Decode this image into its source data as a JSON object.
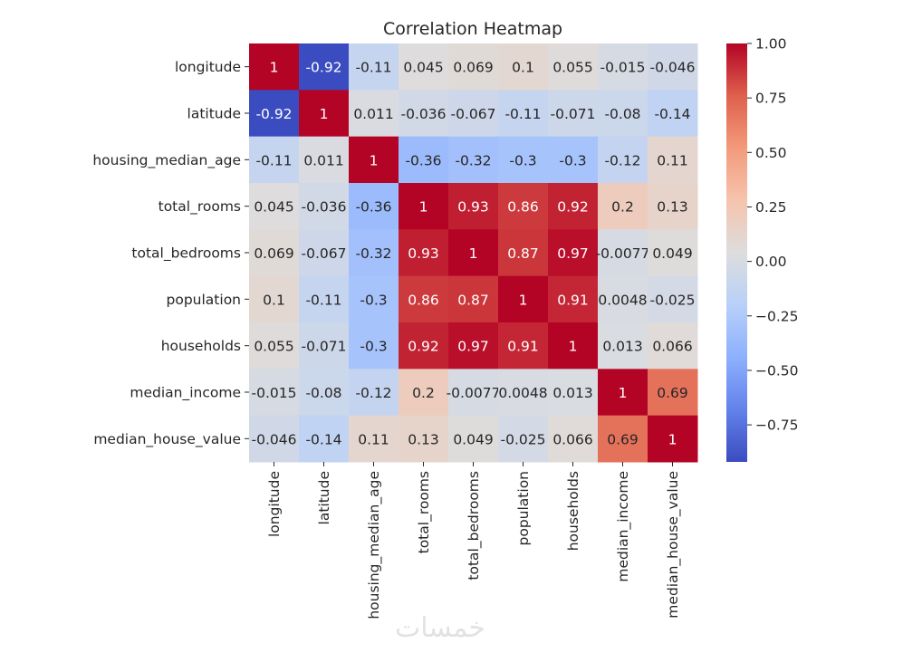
{
  "chart_data": {
    "type": "heatmap",
    "title": "Correlation Heatmap",
    "xlabel": "",
    "ylabel": "",
    "labels": [
      "longitude",
      "latitude",
      "housing_median_age",
      "total_rooms",
      "total_bedrooms",
      "population",
      "households",
      "median_income",
      "median_house_value"
    ],
    "matrix": [
      [
        1,
        -0.92,
        -0.11,
        0.045,
        0.069,
        0.1,
        0.055,
        -0.015,
        -0.046
      ],
      [
        -0.92,
        1,
        0.011,
        -0.036,
        -0.067,
        -0.11,
        -0.071,
        -0.08,
        -0.14
      ],
      [
        -0.11,
        0.011,
        1,
        -0.36,
        -0.32,
        -0.3,
        -0.3,
        -0.12,
        0.11
      ],
      [
        0.045,
        -0.036,
        -0.36,
        1,
        0.93,
        0.86,
        0.92,
        0.2,
        0.13
      ],
      [
        0.069,
        -0.067,
        -0.32,
        0.93,
        1,
        0.87,
        0.97,
        -0.0077,
        0.049
      ],
      [
        0.1,
        -0.11,
        -0.3,
        0.86,
        0.87,
        1,
        0.91,
        0.0048,
        -0.025
      ],
      [
        0.055,
        -0.071,
        -0.3,
        0.92,
        0.97,
        0.91,
        1,
        0.013,
        0.066
      ],
      [
        -0.015,
        -0.08,
        -0.12,
        0.2,
        -0.0077,
        0.0048,
        0.013,
        1,
        0.69
      ],
      [
        -0.046,
        -0.14,
        0.11,
        0.13,
        0.049,
        -0.025,
        0.066,
        0.69,
        1
      ]
    ],
    "annotations": [
      [
        "1",
        "-0.92",
        "-0.11",
        "0.045",
        "0.069",
        "0.1",
        "0.055",
        "-0.015",
        "-0.046"
      ],
      [
        "-0.92",
        "1",
        "0.011",
        "-0.036",
        "-0.067",
        "-0.11",
        "-0.071",
        "-0.08",
        "-0.14"
      ],
      [
        "-0.11",
        "0.011",
        "1",
        "-0.36",
        "-0.32",
        "-0.3",
        "-0.3",
        "-0.12",
        "0.11"
      ],
      [
        "0.045",
        "-0.036",
        "-0.36",
        "1",
        "0.93",
        "0.86",
        "0.92",
        "0.2",
        "0.13"
      ],
      [
        "0.069",
        "-0.067",
        "-0.32",
        "0.93",
        "1",
        "0.87",
        "0.97",
        "-0.0077",
        "0.049"
      ],
      [
        "0.1",
        "-0.11",
        "-0.3",
        "0.86",
        "0.87",
        "1",
        "0.91",
        "0.0048",
        "-0.025"
      ],
      [
        "0.055",
        "-0.071",
        "-0.3",
        "0.92",
        "0.97",
        "0.91",
        "1",
        "0.013",
        "0.066"
      ],
      [
        "-0.015",
        "-0.08",
        "-0.12",
        "0.2",
        "-0.0077",
        "0.0048",
        "0.013",
        "1",
        "0.69"
      ],
      [
        "-0.046",
        "-0.14",
        "0.11",
        "0.13",
        "0.049",
        "-0.025",
        "0.066",
        "0.69",
        "1"
      ]
    ],
    "colormap": "coolwarm",
    "colorbar": {
      "range": [
        -0.92,
        1.0
      ],
      "ticks": [
        1.0,
        0.75,
        0.5,
        0.25,
        0.0,
        -0.25,
        -0.5,
        -0.75
      ],
      "tick_labels": [
        "1.00",
        "0.75",
        "0.50",
        "0.25",
        "0.00",
        "−0.25",
        "−0.50",
        "−0.75"
      ],
      "placement": "right"
    },
    "colors": {
      "low": "#3b4cc0",
      "mid": "#dddddd",
      "high": "#b40426"
    }
  },
  "watermark": "خمسات"
}
